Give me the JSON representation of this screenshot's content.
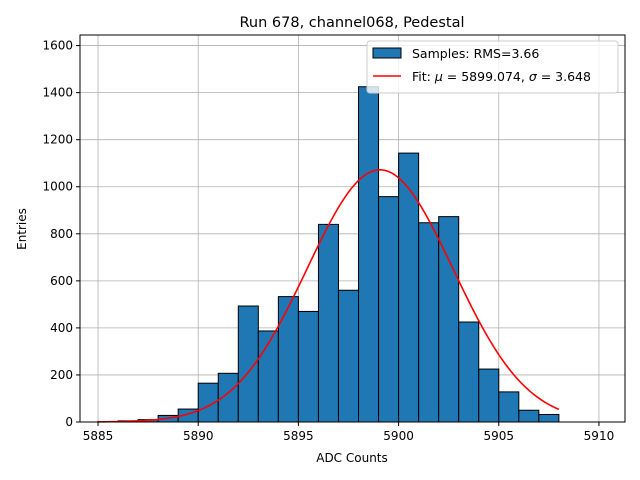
{
  "chart_data": {
    "type": "bar",
    "title": "Run 678, channel068, Pedestal",
    "xlabel": "ADC Counts",
    "ylabel": "Entries",
    "xlim": [
      5884.1,
      5911.3
    ],
    "ylim": [
      0,
      1645
    ],
    "grid": true,
    "x_ticks": [
      5885,
      5890,
      5895,
      5900,
      5905,
      5910
    ],
    "x_tick_labels": [
      "5885",
      "5890",
      "5895",
      "5900",
      "5905",
      "5910"
    ],
    "y_ticks": [
      0,
      200,
      400,
      600,
      800,
      1000,
      1200,
      1400,
      1600
    ],
    "y_tick_labels": [
      "0",
      "200",
      "400",
      "600",
      "800",
      "1000",
      "1200",
      "1400",
      "1600"
    ],
    "bin_width": 1,
    "bin_edges_start": 5885,
    "series": [
      {
        "name": "Samples: RMS=3.66",
        "kind": "histogram",
        "color": "#1f77b4",
        "edge_color": "#000000",
        "bin_starts": [
          5885,
          5886,
          5887,
          5888,
          5889,
          5890,
          5891,
          5892,
          5893,
          5894,
          5895,
          5896,
          5897,
          5898,
          5899,
          5900,
          5901,
          5902,
          5903,
          5904,
          5905,
          5906,
          5907
        ],
        "values": [
          2,
          5,
          10,
          28,
          55,
          165,
          207,
          493,
          387,
          533,
          470,
          840,
          560,
          1425,
          958,
          1143,
          847,
          873,
          425,
          225,
          128,
          50,
          32
        ]
      },
      {
        "name": "Fit: μ = 5899.074, σ = 3.648",
        "kind": "gaussian_fit",
        "color": "#ff0000",
        "mu": 5899.074,
        "sigma": 3.648,
        "amplitude": 1072,
        "x_range": [
          5885,
          5908
        ]
      }
    ],
    "legend": {
      "position": "top-right",
      "entries": [
        {
          "label": "Samples: RMS=3.66",
          "swatch": "patch"
        },
        {
          "label_prefix": "Fit: ",
          "mu_symbol": "μ",
          "mu_text": " = 5899.074, ",
          "sigma_symbol": "σ",
          "sigma_text": " = 3.648",
          "swatch": "line"
        }
      ]
    }
  }
}
